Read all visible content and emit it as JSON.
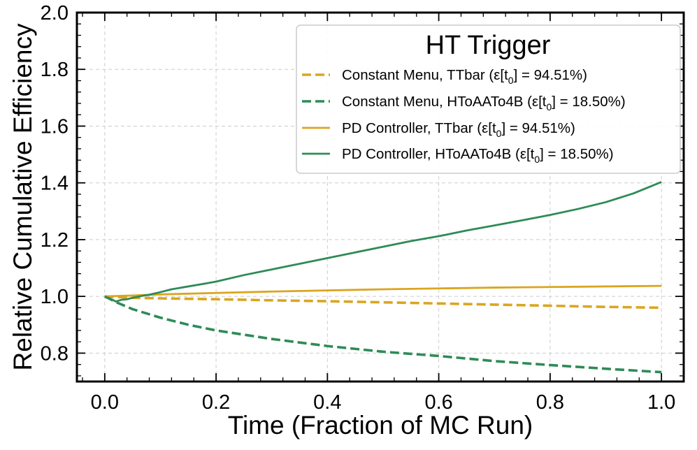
{
  "chart_data": {
    "type": "line",
    "title": "",
    "xlabel": "Time (Fraction of MC Run)",
    "ylabel": "Relative Cumulative Efficiency",
    "xlim": [
      -0.05,
      1.04
    ],
    "ylim": [
      0.7,
      2.0
    ],
    "xticks": [
      "0.0",
      "0.2",
      "0.4",
      "0.6",
      "0.8",
      "1.0"
    ],
    "yticks": [
      "0.8",
      "1.0",
      "1.2",
      "1.4",
      "1.6",
      "1.8",
      "2.0"
    ],
    "grid": true,
    "legend": {
      "title": "HT Trigger",
      "position": "top-right"
    },
    "series": [
      {
        "name": "Constant Menu, TTbar (ε[t0] = 94.51%)",
        "label_prefix": "Constant Menu, TTbar (ε[t",
        "label_sub": "0",
        "label_suffix": "] = 94.51%)",
        "color": "#DAA520",
        "style": "dashed",
        "x": [
          0.0,
          0.05,
          0.1,
          0.2,
          0.3,
          0.4,
          0.5,
          0.6,
          0.7,
          0.8,
          0.9,
          1.0
        ],
        "y": [
          1.0,
          0.995,
          0.993,
          0.99,
          0.986,
          0.983,
          0.979,
          0.975,
          0.971,
          0.967,
          0.963,
          0.96
        ]
      },
      {
        "name": "Constant Menu, HToAATo4B (ε[t0] = 18.50%)",
        "label_prefix": "Constant Menu, HToAATo4B (ε[t",
        "label_sub": "0",
        "label_suffix": "] = 18.50%)",
        "color": "#2E8B57",
        "style": "dashed",
        "x": [
          0.0,
          0.02,
          0.05,
          0.1,
          0.15,
          0.2,
          0.3,
          0.4,
          0.5,
          0.6,
          0.7,
          0.8,
          0.9,
          1.0
        ],
        "y": [
          1.0,
          0.98,
          0.955,
          0.925,
          0.9,
          0.88,
          0.85,
          0.825,
          0.805,
          0.79,
          0.772,
          0.758,
          0.745,
          0.733
        ]
      },
      {
        "name": "PD Controller, TTbar (ε[t0] = 94.51%)",
        "label_prefix": "PD Controller, TTbar (ε[t",
        "label_sub": "0",
        "label_suffix": "] = 94.51%)",
        "color": "#DAA520",
        "style": "solid",
        "x": [
          0.0,
          0.05,
          0.1,
          0.2,
          0.3,
          0.4,
          0.5,
          0.6,
          0.7,
          0.8,
          0.9,
          1.0
        ],
        "y": [
          1.0,
          1.003,
          1.007,
          1.012,
          1.017,
          1.021,
          1.025,
          1.028,
          1.031,
          1.033,
          1.035,
          1.037
        ]
      },
      {
        "name": "PD Controller, HToAATo4B (ε[t0] = 18.50%)",
        "label_prefix": "PD Controller, HToAATo4B (ε[t",
        "label_sub": "0",
        "label_suffix": "] = 18.50%)",
        "color": "#2E8B57",
        "style": "solid",
        "x": [
          0.0,
          0.01,
          0.02,
          0.03,
          0.04,
          0.05,
          0.06,
          0.07,
          0.08,
          0.1,
          0.12,
          0.15,
          0.18,
          0.2,
          0.25,
          0.3,
          0.35,
          0.4,
          0.45,
          0.5,
          0.55,
          0.6,
          0.65,
          0.7,
          0.75,
          0.8,
          0.85,
          0.9,
          0.95,
          1.0
        ],
        "y": [
          1.0,
          0.992,
          0.982,
          0.988,
          0.99,
          0.995,
          0.999,
          1.003,
          1.006,
          1.015,
          1.025,
          1.035,
          1.045,
          1.052,
          1.075,
          1.095,
          1.115,
          1.135,
          1.155,
          1.175,
          1.195,
          1.212,
          1.232,
          1.25,
          1.268,
          1.287,
          1.308,
          1.332,
          1.363,
          1.403
        ]
      }
    ]
  }
}
